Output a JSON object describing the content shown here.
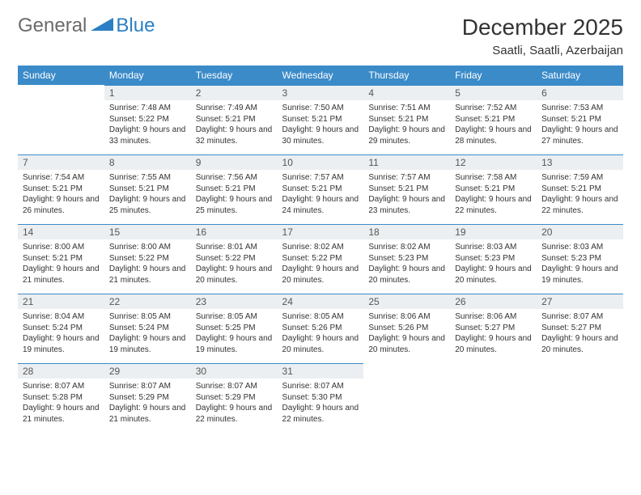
{
  "logo": {
    "part1": "General",
    "part2": "Blue"
  },
  "title": "December 2025",
  "location": "Saatli, Saatli, Azerbaijan",
  "colors": {
    "header_bg": "#3b8bc9",
    "header_text": "#ffffff",
    "daynum_bg": "#eceff1",
    "daynum_border": "#3b8bc9",
    "logo_gray": "#6b6b6b",
    "logo_blue": "#2b7fc4",
    "body_text": "#333333",
    "page_bg": "#ffffff"
  },
  "day_headers": [
    "Sunday",
    "Monday",
    "Tuesday",
    "Wednesday",
    "Thursday",
    "Friday",
    "Saturday"
  ],
  "weeks": [
    [
      null,
      {
        "n": "1",
        "sr": "7:48 AM",
        "ss": "5:22 PM",
        "dl": "9 hours and 33 minutes."
      },
      {
        "n": "2",
        "sr": "7:49 AM",
        "ss": "5:21 PM",
        "dl": "9 hours and 32 minutes."
      },
      {
        "n": "3",
        "sr": "7:50 AM",
        "ss": "5:21 PM",
        "dl": "9 hours and 30 minutes."
      },
      {
        "n": "4",
        "sr": "7:51 AM",
        "ss": "5:21 PM",
        "dl": "9 hours and 29 minutes."
      },
      {
        "n": "5",
        "sr": "7:52 AM",
        "ss": "5:21 PM",
        "dl": "9 hours and 28 minutes."
      },
      {
        "n": "6",
        "sr": "7:53 AM",
        "ss": "5:21 PM",
        "dl": "9 hours and 27 minutes."
      }
    ],
    [
      {
        "n": "7",
        "sr": "7:54 AM",
        "ss": "5:21 PM",
        "dl": "9 hours and 26 minutes."
      },
      {
        "n": "8",
        "sr": "7:55 AM",
        "ss": "5:21 PM",
        "dl": "9 hours and 25 minutes."
      },
      {
        "n": "9",
        "sr": "7:56 AM",
        "ss": "5:21 PM",
        "dl": "9 hours and 25 minutes."
      },
      {
        "n": "10",
        "sr": "7:57 AM",
        "ss": "5:21 PM",
        "dl": "9 hours and 24 minutes."
      },
      {
        "n": "11",
        "sr": "7:57 AM",
        "ss": "5:21 PM",
        "dl": "9 hours and 23 minutes."
      },
      {
        "n": "12",
        "sr": "7:58 AM",
        "ss": "5:21 PM",
        "dl": "9 hours and 22 minutes."
      },
      {
        "n": "13",
        "sr": "7:59 AM",
        "ss": "5:21 PM",
        "dl": "9 hours and 22 minutes."
      }
    ],
    [
      {
        "n": "14",
        "sr": "8:00 AM",
        "ss": "5:21 PM",
        "dl": "9 hours and 21 minutes."
      },
      {
        "n": "15",
        "sr": "8:00 AM",
        "ss": "5:22 PM",
        "dl": "9 hours and 21 minutes."
      },
      {
        "n": "16",
        "sr": "8:01 AM",
        "ss": "5:22 PM",
        "dl": "9 hours and 20 minutes."
      },
      {
        "n": "17",
        "sr": "8:02 AM",
        "ss": "5:22 PM",
        "dl": "9 hours and 20 minutes."
      },
      {
        "n": "18",
        "sr": "8:02 AM",
        "ss": "5:23 PM",
        "dl": "9 hours and 20 minutes."
      },
      {
        "n": "19",
        "sr": "8:03 AM",
        "ss": "5:23 PM",
        "dl": "9 hours and 20 minutes."
      },
      {
        "n": "20",
        "sr": "8:03 AM",
        "ss": "5:23 PM",
        "dl": "9 hours and 19 minutes."
      }
    ],
    [
      {
        "n": "21",
        "sr": "8:04 AM",
        "ss": "5:24 PM",
        "dl": "9 hours and 19 minutes."
      },
      {
        "n": "22",
        "sr": "8:05 AM",
        "ss": "5:24 PM",
        "dl": "9 hours and 19 minutes."
      },
      {
        "n": "23",
        "sr": "8:05 AM",
        "ss": "5:25 PM",
        "dl": "9 hours and 19 minutes."
      },
      {
        "n": "24",
        "sr": "8:05 AM",
        "ss": "5:26 PM",
        "dl": "9 hours and 20 minutes."
      },
      {
        "n": "25",
        "sr": "8:06 AM",
        "ss": "5:26 PM",
        "dl": "9 hours and 20 minutes."
      },
      {
        "n": "26",
        "sr": "8:06 AM",
        "ss": "5:27 PM",
        "dl": "9 hours and 20 minutes."
      },
      {
        "n": "27",
        "sr": "8:07 AM",
        "ss": "5:27 PM",
        "dl": "9 hours and 20 minutes."
      }
    ],
    [
      {
        "n": "28",
        "sr": "8:07 AM",
        "ss": "5:28 PM",
        "dl": "9 hours and 21 minutes."
      },
      {
        "n": "29",
        "sr": "8:07 AM",
        "ss": "5:29 PM",
        "dl": "9 hours and 21 minutes."
      },
      {
        "n": "30",
        "sr": "8:07 AM",
        "ss": "5:29 PM",
        "dl": "9 hours and 22 minutes."
      },
      {
        "n": "31",
        "sr": "8:07 AM",
        "ss": "5:30 PM",
        "dl": "9 hours and 22 minutes."
      },
      null,
      null,
      null
    ]
  ],
  "labels": {
    "sunrise": "Sunrise:",
    "sunset": "Sunset:",
    "daylight": "Daylight:"
  }
}
